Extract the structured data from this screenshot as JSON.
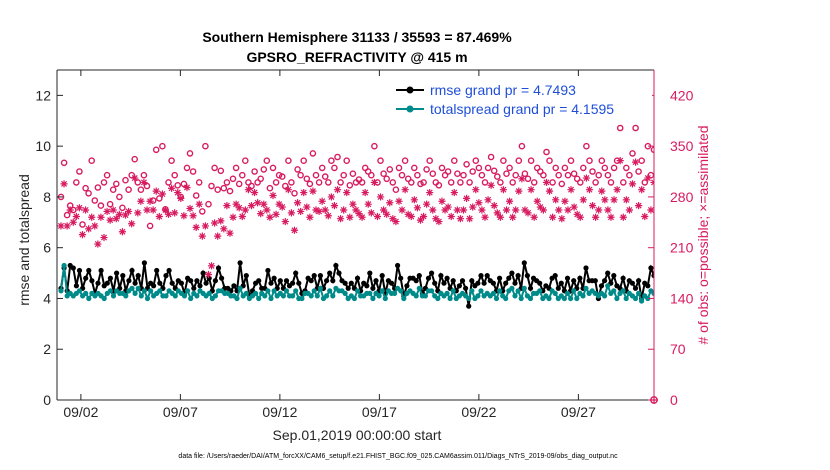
{
  "chart_data": {
    "type": "line",
    "title": "Southern Hemisphere 31133 / 35593 = 87.469%",
    "subtitle": "GPSRO_REFRACTIVITY @ 415 m",
    "xlabel": "Sep.01,2019 00:00:00 start",
    "ylabel": "rmse and totalspread",
    "ylabel_right": "# of obs: o=possible; ×=assimilated",
    "footnote": "data file: /Users/raeder/DAI/ATM_forcXX/CAM6_setup/f.e21.FHIST_BGC.f09_025.CAM6assim.011/Diags_NTrS_2019-09/obs_diag_output.nc",
    "xlim": [
      0.8,
      30.8
    ],
    "ylim": [
      0,
      13
    ],
    "ylim_right": [
      0,
      455
    ],
    "x_ticks": [
      2,
      7,
      12,
      17,
      22,
      27
    ],
    "x_tick_labels": [
      "09/02",
      "09/07",
      "09/12",
      "09/17",
      "09/22",
      "09/27"
    ],
    "y_ticks": [
      0,
      2,
      4,
      6,
      8,
      10,
      12
    ],
    "y_tick_labels": [
      "0",
      "2",
      "4",
      "6",
      "8",
      "10",
      "12"
    ],
    "y_right_ticks": [
      0,
      70,
      140,
      210,
      280,
      350,
      420
    ],
    "y_right_tick_labels": [
      "0",
      "70",
      "140",
      "210",
      "280",
      "350",
      "420"
    ],
    "legend_position": "top-right",
    "colors": {
      "rmse": "#000000",
      "spread": "#008b8b",
      "obs": "#d81b60",
      "axis": "#262626",
      "legend_text": "#1f4fd8"
    },
    "series": [
      {
        "name": "rmse grand pr = 4.7493",
        "axis": "left",
        "style": "line-marker",
        "color": "#000000",
        "values": [
          4.4,
          5.2,
          4.3,
          5.3,
          5.2,
          4.5,
          5.1,
          4.4,
          4.8,
          5.1,
          4.7,
          4.2,
          4.6,
          5.1,
          4.5,
          4.6,
          4.8,
          4.3,
          5.0,
          4.4,
          4.9,
          4.3,
          4.7,
          5.1,
          4.6,
          4.9,
          4.4,
          5.4,
          4.4,
          4.6,
          4.5,
          5.1,
          4.6,
          4.4,
          4.9,
          5.1,
          4.6,
          4.4,
          4.7,
          4.6,
          4.2,
          4.8,
          4.7,
          4.4,
          4.7,
          4.5,
          5.0,
          4.6,
          4.8,
          4.3,
          4.7,
          5.2,
          4.8,
          4.4,
          4.4,
          4.3,
          4.5,
          4.3,
          5.4,
          4.5,
          4.9,
          4.1,
          4.3,
          4.6,
          4.7,
          4.4,
          4.4,
          5.1,
          4.6,
          4.8,
          4.4,
          4.7,
          4.4,
          4.7,
          4.5,
          4.6,
          5.0,
          4.6,
          4.2,
          4.3,
          4.8,
          4.7,
          4.9,
          4.4,
          4.9,
          4.4,
          4.7,
          5.0,
          4.7,
          5.3,
          5.0,
          4.7,
          4.6,
          4.4,
          4.6,
          4.4,
          4.8,
          4.3,
          4.6,
          4.5,
          5.0,
          4.4,
          4.7,
          4.3,
          4.9,
          4.2,
          4.7,
          4.6,
          4.4,
          5.3,
          4.8,
          4.1,
          4.5,
          4.8,
          4.8,
          4.7,
          4.9,
          4.2,
          4.4,
          4.8,
          5.0,
          4.6,
          4.3,
          4.9,
          4.6,
          4.8,
          4.4,
          4.7,
          4.3,
          4.5,
          4.7,
          4.4,
          3.7,
          4.7,
          4.5,
          4.6,
          4.9,
          4.6,
          4.9,
          4.7,
          4.6,
          4.3,
          4.8,
          4.3,
          4.6,
          4.8,
          5.0,
          4.6,
          4.9,
          4.4,
          5.4,
          4.9,
          4.4,
          4.8,
          4.7,
          4.6,
          4.3,
          4.5,
          4.4,
          4.8,
          4.9,
          4.4,
          4.6,
          4.3,
          4.8,
          4.3,
          4.7,
          4.4,
          4.8,
          4.4,
          5.2,
          4.7,
          4.7,
          4.7,
          4.0,
          4.5,
          4.7,
          5.0,
          4.6,
          4.9,
          4.5,
          4.4,
          4.8,
          4.3,
          4.7,
          4.6,
          4.4,
          4.7,
          4.0,
          4.6,
          4.5,
          5.2,
          4.9
        ]
      },
      {
        "name": "totalspread grand pr = 4.1595",
        "axis": "left",
        "style": "line-marker",
        "color": "#008b8b",
        "values": [
          4.3,
          5.3,
          4.1,
          4.2,
          4.1,
          4.2,
          4.3,
          4.1,
          4.2,
          4.0,
          4.2,
          4.1,
          4.2,
          4.1,
          4.0,
          4.2,
          4.3,
          4.1,
          4.3,
          4.2,
          4.2,
          4.1,
          4.3,
          4.4,
          4.2,
          4.4,
          4.1,
          4.3,
          4.0,
          4.3,
          4.1,
          4.2,
          4.3,
          4.1,
          4.1,
          4.3,
          4.2,
          4.1,
          4.3,
          4.2,
          4.1,
          4.3,
          4.0,
          4.2,
          4.1,
          4.3,
          4.2,
          4.1,
          4.2,
          4.0,
          4.1,
          4.3,
          4.3,
          4.2,
          4.2,
          4.1,
          4.1,
          4.0,
          4.4,
          4.1,
          4.2,
          4.0,
          4.1,
          4.2,
          4.0,
          4.2,
          4.1,
          4.3,
          4.0,
          4.3,
          4.1,
          4.2,
          4.1,
          4.3,
          4.1,
          4.1,
          4.3,
          4.0,
          4.0,
          4.2,
          4.2,
          4.1,
          4.3,
          4.1,
          4.4,
          4.0,
          4.1,
          4.3,
          4.1,
          4.4,
          4.3,
          4.3,
          4.2,
          4.0,
          4.1,
          4.0,
          4.3,
          4.1,
          4.1,
          4.2,
          4.2,
          4.0,
          4.2,
          4.1,
          4.3,
          4.0,
          4.3,
          4.2,
          4.2,
          4.4,
          4.3,
          4.0,
          4.2,
          4.3,
          4.2,
          4.1,
          4.4,
          4.1,
          4.1,
          4.3,
          4.3,
          4.1,
          4.0,
          4.2,
          4.1,
          4.2,
          4.0,
          4.3,
          4.0,
          4.1,
          4.2,
          4.1,
          4.0,
          4.3,
          4.0,
          4.1,
          4.3,
          4.1,
          4.2,
          4.1,
          4.2,
          4.0,
          4.3,
          4.1,
          4.0,
          4.3,
          4.4,
          4.1,
          4.3,
          4.0,
          4.4,
          4.1,
          4.0,
          4.2,
          4.2,
          4.3,
          4.0,
          4.1,
          4.0,
          4.3,
          4.2,
          4.0,
          4.1,
          4.0,
          4.2,
          4.0,
          4.3,
          4.0,
          4.2,
          4.1,
          4.4,
          4.2,
          4.3,
          4.2,
          4.1,
          4.2,
          4.1,
          4.5,
          4.2,
          4.3,
          4.0,
          4.2,
          4.3,
          4.0,
          4.2,
          4.1,
          4.0,
          4.2,
          3.9,
          4.1,
          4.0,
          4.3,
          4.2
        ]
      },
      {
        "name": "possible obs (o)",
        "axis": "right",
        "style": "marker-circle",
        "color": "#d81b60",
        "values": [
          280,
          327,
          255,
          268,
          262,
          300,
          315,
          242,
          292,
          285,
          330,
          275,
          293,
          268,
          300,
          310,
          270,
          290,
          298,
          280,
          265,
          303,
          290,
          310,
          332,
          300,
          290,
          310,
          295,
          240,
          275,
          345,
          278,
          350,
          263,
          300,
          330,
          310,
          296,
          280,
          298,
          320,
          340,
          315,
          282,
          300,
          260,
          350,
          270,
          295,
          320,
          290,
          316,
          292,
          300,
          288,
          305,
          320,
          298,
          310,
          330,
          300,
          295,
          315,
          300,
          305,
          318,
          330,
          292,
          320,
          300,
          310,
          308,
          295,
          330,
          300,
          285,
          318,
          310,
          330,
          305,
          298,
          340,
          310,
          300,
          320,
          308,
          300,
          330,
          320,
          335,
          300,
          310,
          330,
          296,
          312,
          300,
          304,
          300,
          320,
          315,
          310,
          350,
          300,
          330,
          312,
          305,
          318,
          300,
          290,
          320,
          310,
          330,
          305,
          300,
          320,
          310,
          298,
          300,
          318,
          330,
          312,
          300,
          296,
          320,
          310,
          315,
          300,
          330,
          312,
          300,
          310,
          325,
          300,
          315,
          330,
          320,
          310,
          300,
          320,
          335,
          316,
          308,
          300,
          330,
          312,
          320,
          300,
          310,
          330,
          350,
          312,
          305,
          330,
          300,
          320,
          315,
          310,
          342,
          330,
          300,
          320,
          310,
          298,
          320,
          310,
          330,
          312,
          305,
          300,
          320,
          350,
          330,
          315,
          300,
          310,
          330,
          320,
          310,
          300,
          320,
          330,
          375,
          300,
          320,
          310,
          340,
          375,
          315,
          330,
          300,
          350,
          310,
          345
        ]
      },
      {
        "name": "assimilated obs (×)",
        "axis": "right",
        "style": "marker-star",
        "color": "#d81b60",
        "values": [
          240,
          298,
          240,
          262,
          245,
          253,
          265,
          228,
          262,
          236,
          252,
          240,
          215,
          252,
          224,
          260,
          248,
          262,
          250,
          256,
          232,
          255,
          260,
          243,
          306,
          258,
          274,
          300,
          262,
          274,
          262,
          288,
          253,
          284,
          262,
          256,
          292,
          258,
          286,
          278,
          254,
          293,
          264,
          254,
          238,
          270,
          226,
          240,
          173,
          185,
          244,
          226,
          247,
          236,
          268,
          230,
          252,
          270,
          265,
          253,
          262,
          290,
          268,
          286,
          272,
          257,
          270,
          262,
          252,
          282,
          256,
          270,
          266,
          246,
          290,
          258,
          234,
          272,
          260,
          286,
          266,
          252,
          288,
          262,
          260,
          274,
          262,
          254,
          280,
          268,
          290,
          250,
          262,
          286,
          252,
          270,
          262,
          257,
          252,
          286,
          270,
          258,
          300,
          253,
          280,
          262,
          256,
          272,
          250,
          246,
          274,
          262,
          290,
          256,
          253,
          276,
          265,
          248,
          253,
          270,
          286,
          262,
          250,
          246,
          274,
          262,
          266,
          253,
          286,
          262,
          250,
          262,
          278,
          250,
          266,
          290,
          272,
          262,
          252,
          276,
          296,
          268,
          258,
          252,
          290,
          262,
          274,
          252,
          262,
          288,
          305,
          262,
          258,
          290,
          252,
          274,
          266,
          262,
          300,
          288,
          252,
          276,
          262,
          250,
          274,
          262,
          290,
          266,
          256,
          252,
          276,
          306,
          290,
          268,
          252,
          262,
          288,
          276,
          262,
          252,
          276,
          290,
          330,
          252,
          276,
          262,
          298,
          328,
          268,
          290,
          253,
          306,
          262,
          300
        ]
      }
    ]
  }
}
